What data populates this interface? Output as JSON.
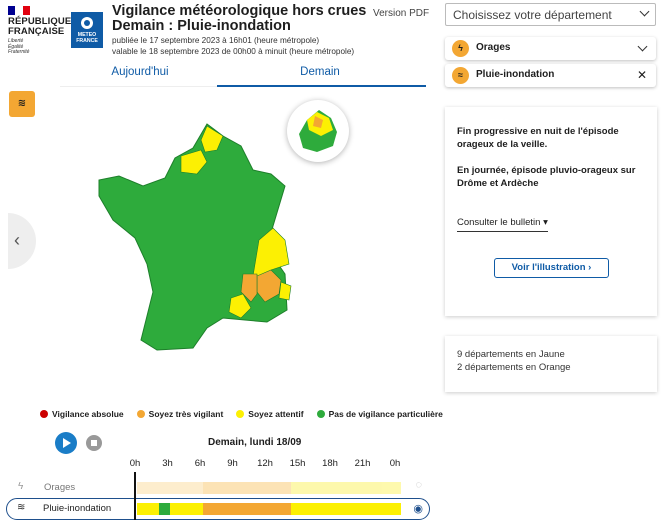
{
  "header": {
    "republic_lines": [
      "RÉPUBLIQUE",
      "FRANÇAISE"
    ],
    "motto": [
      "Liberté",
      "Égalité",
      "Fraternité"
    ],
    "meteo_logo": "METEO FRANCE",
    "title_line1": "Vigilance météorologique hors crues",
    "title_line2": "Demain : Pluie-inondation",
    "published": "publiée le 17 septembre 2023 à 16h01 (heure métropole)",
    "valid": "valable le 18 septembre 2023 de 00h00 à minuit (heure métropole)",
    "pdf_link": "Version PDF"
  },
  "tabs": [
    {
      "label": "Aujourd'hui"
    },
    {
      "label": "Demain"
    }
  ],
  "department_select": {
    "placeholder": "Choisissez votre département"
  },
  "phenomena": [
    {
      "label": "Orages",
      "icon": "lightning-icon",
      "color": "#f3a733"
    },
    {
      "label": "Pluie-inondation",
      "icon": "rain-flood-icon",
      "color": "#f3a733"
    }
  ],
  "legend": [
    {
      "label": "Vigilance absolue",
      "color": "#cc0000"
    },
    {
      "label": "Soyez très vigilant",
      "color": "#f3a733"
    },
    {
      "label": "Soyez attentif",
      "color": "#fcf003"
    },
    {
      "label": "Pas de vigilance particulière",
      "color": "#2eab3c"
    }
  ],
  "timeline": {
    "date_label": "Demain, lundi 18/09",
    "hours": [
      "0h",
      "3h",
      "6h",
      "9h",
      "12h",
      "15h",
      "18h",
      "21h",
      "0h"
    ],
    "rows": [
      {
        "label": "Orages",
        "segments": [
          {
            "from": 0,
            "to": 6,
            "color": "#fde6b8"
          },
          {
            "from": 6,
            "to": 14,
            "color": "#fbd896"
          },
          {
            "from": 14,
            "to": 24,
            "color": "#fdf68a"
          }
        ]
      },
      {
        "label": "Pluie-inondation",
        "segments": [
          {
            "from": 0,
            "to": 2,
            "color": "#fcf003"
          },
          {
            "from": 2,
            "to": 3,
            "color": "#2eab3c"
          },
          {
            "from": 3,
            "to": 6,
            "color": "#fcf003"
          },
          {
            "from": 6,
            "to": 14,
            "color": "#f3a733"
          },
          {
            "from": 14,
            "to": 24,
            "color": "#fcf003"
          }
        ]
      }
    ]
  },
  "bulletin": {
    "text1": "Fin progressive en nuit de l'épisode orageux de la veille.",
    "text2": "En journée, épisode pluvio-orageux sur Drôme et Ardèche",
    "consult": "Consulter le bulletin",
    "illustration": "Voir l'illustration"
  },
  "stats": [
    "9 départements en Jaune",
    "2 départements en Orange"
  ]
}
